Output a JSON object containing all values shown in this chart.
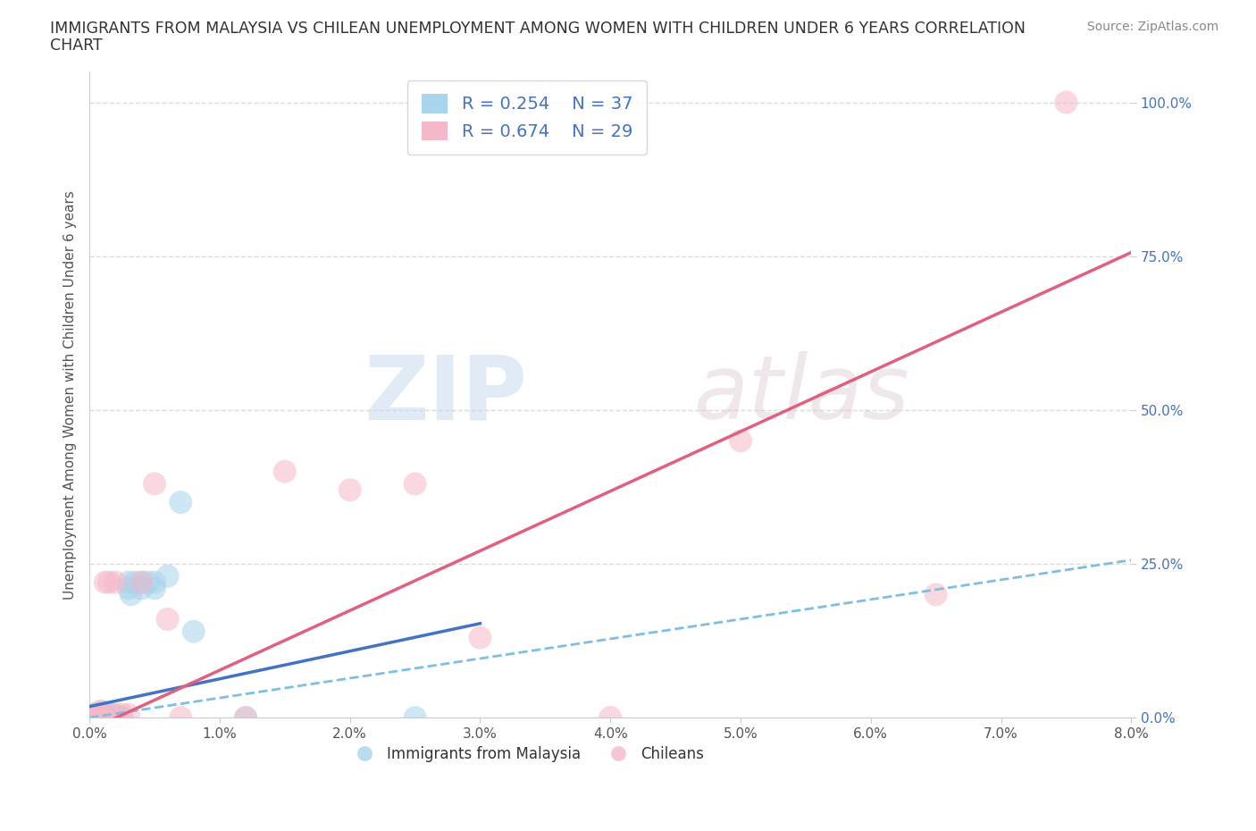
{
  "title_line1": "IMMIGRANTS FROM MALAYSIA VS CHILEAN UNEMPLOYMENT AMONG WOMEN WITH CHILDREN UNDER 6 YEARS CORRELATION",
  "title_line2": "CHART",
  "source": "Source: ZipAtlas.com",
  "ylabel": "Unemployment Among Women with Children Under 6 years",
  "xlim": [
    0.0,
    0.08
  ],
  "ylim": [
    0.0,
    1.05
  ],
  "xticks": [
    0.0,
    0.01,
    0.02,
    0.03,
    0.04,
    0.05,
    0.06,
    0.07,
    0.08
  ],
  "xticklabels": [
    "0.0%",
    "1.0%",
    "2.0%",
    "3.0%",
    "4.0%",
    "5.0%",
    "6.0%",
    "7.0%",
    "8.0%"
  ],
  "yticks": [
    0.0,
    0.25,
    0.5,
    0.75,
    1.0
  ],
  "yticklabels": [
    "0.0%",
    "25.0%",
    "50.0%",
    "75.0%",
    "100.0%"
  ],
  "color_blue": "#A8D4EC",
  "color_pink": "#F5B8C8",
  "color_blue_line_solid": "#4472C4",
  "color_blue_line_dash": "#7FBFE0",
  "color_pink_line": "#E06080",
  "legend_R_blue": "0.254",
  "legend_N_blue": "37",
  "legend_R_pink": "0.674",
  "legend_N_pink": "29",
  "watermark_zip": "ZIP",
  "watermark_atlas": "atlas",
  "blue_x": [
    0.0002,
    0.0003,
    0.0004,
    0.0004,
    0.0005,
    0.0005,
    0.0006,
    0.0007,
    0.0008,
    0.0008,
    0.001,
    0.001,
    0.001,
    0.0012,
    0.0013,
    0.0015,
    0.0015,
    0.0016,
    0.0018,
    0.002,
    0.002,
    0.0022,
    0.0025,
    0.003,
    0.003,
    0.0032,
    0.0035,
    0.004,
    0.004,
    0.0045,
    0.005,
    0.005,
    0.006,
    0.007,
    0.008,
    0.012,
    0.025
  ],
  "blue_y": [
    0.0,
    0.0,
    0.0,
    0.005,
    0.0,
    0.005,
    0.0,
    0.0,
    0.005,
    0.0,
    0.0,
    0.005,
    0.01,
    0.0,
    0.0,
    0.005,
    0.0,
    0.0,
    0.0,
    0.0,
    0.005,
    0.0,
    0.0,
    0.21,
    0.22,
    0.2,
    0.22,
    0.21,
    0.22,
    0.22,
    0.22,
    0.21,
    0.23,
    0.35,
    0.14,
    0.0,
    0.0
  ],
  "pink_x": [
    0.0002,
    0.0003,
    0.0005,
    0.0006,
    0.0007,
    0.0008,
    0.001,
    0.001,
    0.0012,
    0.0015,
    0.0015,
    0.0018,
    0.002,
    0.002,
    0.0025,
    0.003,
    0.004,
    0.005,
    0.006,
    0.007,
    0.012,
    0.015,
    0.02,
    0.025,
    0.03,
    0.04,
    0.05,
    0.065,
    0.075
  ],
  "pink_y": [
    0.0,
    0.005,
    0.0,
    0.005,
    0.0,
    0.01,
    0.0,
    0.005,
    0.22,
    0.22,
    0.0,
    0.005,
    0.22,
    0.0,
    0.005,
    0.005,
    0.22,
    0.38,
    0.16,
    0.0,
    0.0,
    0.4,
    0.37,
    0.38,
    0.13,
    0.0,
    0.45,
    0.2,
    1.0
  ]
}
